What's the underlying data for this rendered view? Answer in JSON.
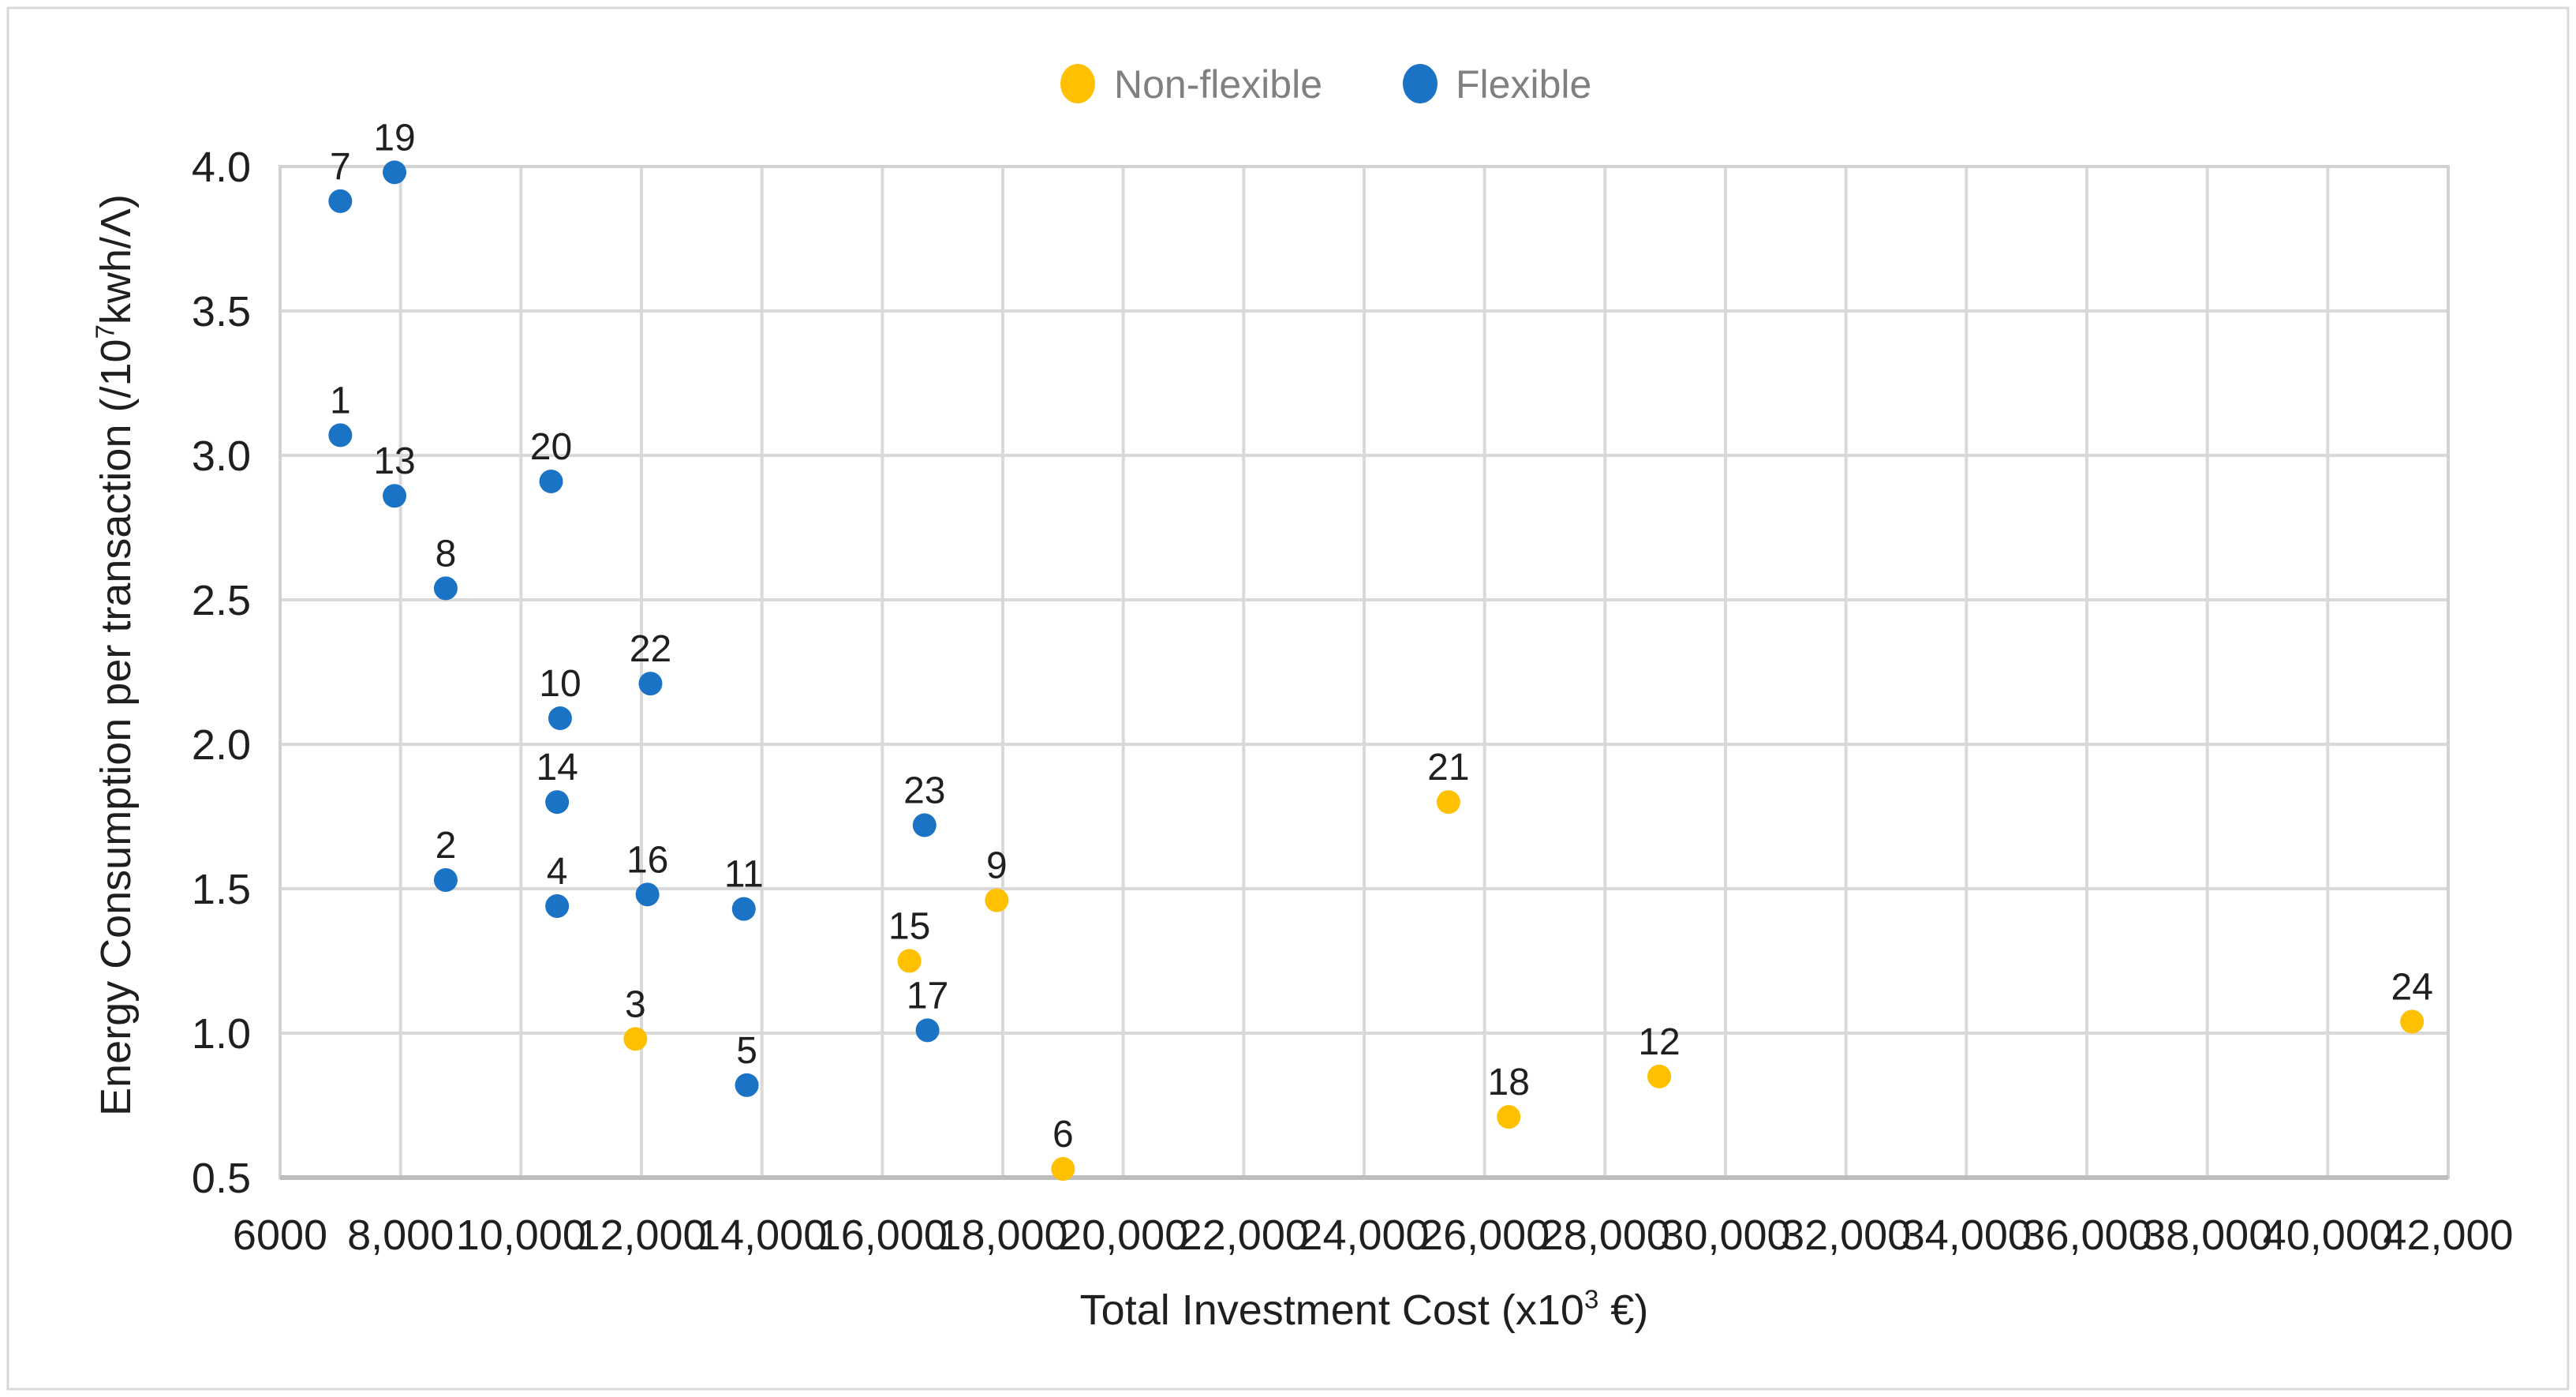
{
  "chart_data": {
    "type": "scatter",
    "title": "",
    "xlabel": "Total Investment Cost  (x10³ €)",
    "ylabel": "Energy Consumption per transaction (/10⁷kwh/Λ)",
    "xlim": [
      6000,
      42000
    ],
    "ylim": [
      0.5,
      4.0
    ],
    "grid": true,
    "legend_position": "top-center",
    "x_ticks": [
      {
        "value": 6000,
        "label": "6000"
      },
      {
        "value": 8000,
        "label": "8,000"
      },
      {
        "value": 10000,
        "label": "10,000"
      },
      {
        "value": 12000,
        "label": "12,000"
      },
      {
        "value": 14000,
        "label": "14,000"
      },
      {
        "value": 16000,
        "label": "16,000"
      },
      {
        "value": 18000,
        "label": "18,000"
      },
      {
        "value": 20000,
        "label": "20,000"
      },
      {
        "value": 22000,
        "label": "22,000"
      },
      {
        "value": 24000,
        "label": "24,000"
      },
      {
        "value": 26000,
        "label": "26,000"
      },
      {
        "value": 28000,
        "label": "28,000"
      },
      {
        "value": 30000,
        "label": "30,000"
      },
      {
        "value": 32000,
        "label": "32,000"
      },
      {
        "value": 34000,
        "label": "34,000"
      },
      {
        "value": 36000,
        "label": "36,000"
      },
      {
        "value": 38000,
        "label": "38,000"
      },
      {
        "value": 40000,
        "label": "40,000"
      },
      {
        "value": 42000,
        "label": "42,000"
      }
    ],
    "y_ticks": [
      {
        "value": 0.5,
        "label": "0.5"
      },
      {
        "value": 1.0,
        "label": "1.0"
      },
      {
        "value": 1.5,
        "label": "1.5"
      },
      {
        "value": 2.0,
        "label": "2.0"
      },
      {
        "value": 2.5,
        "label": "2.5"
      },
      {
        "value": 3.0,
        "label": "3.0"
      },
      {
        "value": 3.5,
        "label": "3.5"
      },
      {
        "value": 4.0,
        "label": "4.0"
      }
    ],
    "series": [
      {
        "name": "Non-flexible",
        "color": "#FFC000",
        "points": [
          {
            "label": "3",
            "x": 11900,
            "y": 0.98
          },
          {
            "label": "6",
            "x": 19000,
            "y": 0.53
          },
          {
            "label": "9",
            "x": 17900,
            "y": 1.46
          },
          {
            "label": "12",
            "x": 28900,
            "y": 0.85
          },
          {
            "label": "15",
            "x": 16450,
            "y": 1.25
          },
          {
            "label": "18",
            "x": 26400,
            "y": 0.71
          },
          {
            "label": "21",
            "x": 25400,
            "y": 1.8
          },
          {
            "label": "24",
            "x": 41400,
            "y": 1.04
          }
        ]
      },
      {
        "name": "Flexible",
        "color": "#1B73C5",
        "points": [
          {
            "label": "1",
            "x": 7000,
            "y": 3.07
          },
          {
            "label": "2",
            "x": 8750,
            "y": 1.53
          },
          {
            "label": "4",
            "x": 10600,
            "y": 1.44
          },
          {
            "label": "5",
            "x": 13750,
            "y": 0.82
          },
          {
            "label": "7",
            "x": 7000,
            "y": 3.88
          },
          {
            "label": "8",
            "x": 8750,
            "y": 2.54
          },
          {
            "label": "10",
            "x": 10650,
            "y": 2.09
          },
          {
            "label": "11",
            "x": 13700,
            "y": 1.43
          },
          {
            "label": "13",
            "x": 7900,
            "y": 2.86
          },
          {
            "label": "14",
            "x": 10600,
            "y": 1.8
          },
          {
            "label": "16",
            "x": 12100,
            "y": 1.48
          },
          {
            "label": "17",
            "x": 16750,
            "y": 1.01
          },
          {
            "label": "19",
            "x": 7900,
            "y": 3.98
          },
          {
            "label": "20",
            "x": 10500,
            "y": 2.91
          },
          {
            "label": "22",
            "x": 12150,
            "y": 2.21
          },
          {
            "label": "23",
            "x": 16700,
            "y": 1.72
          }
        ]
      }
    ],
    "colors": {
      "background": "#FFFFFF",
      "frame_border": "#D8D8D8",
      "grid": "#D9D9D9",
      "plot_border": "#D2D2D2",
      "axis_line": "#BDBDBD",
      "tick_text": "#1F1F1F",
      "point_label_text": "#1F1F1F",
      "axis_title_text": "#1F1F1F",
      "legend_text": "#808080"
    }
  }
}
